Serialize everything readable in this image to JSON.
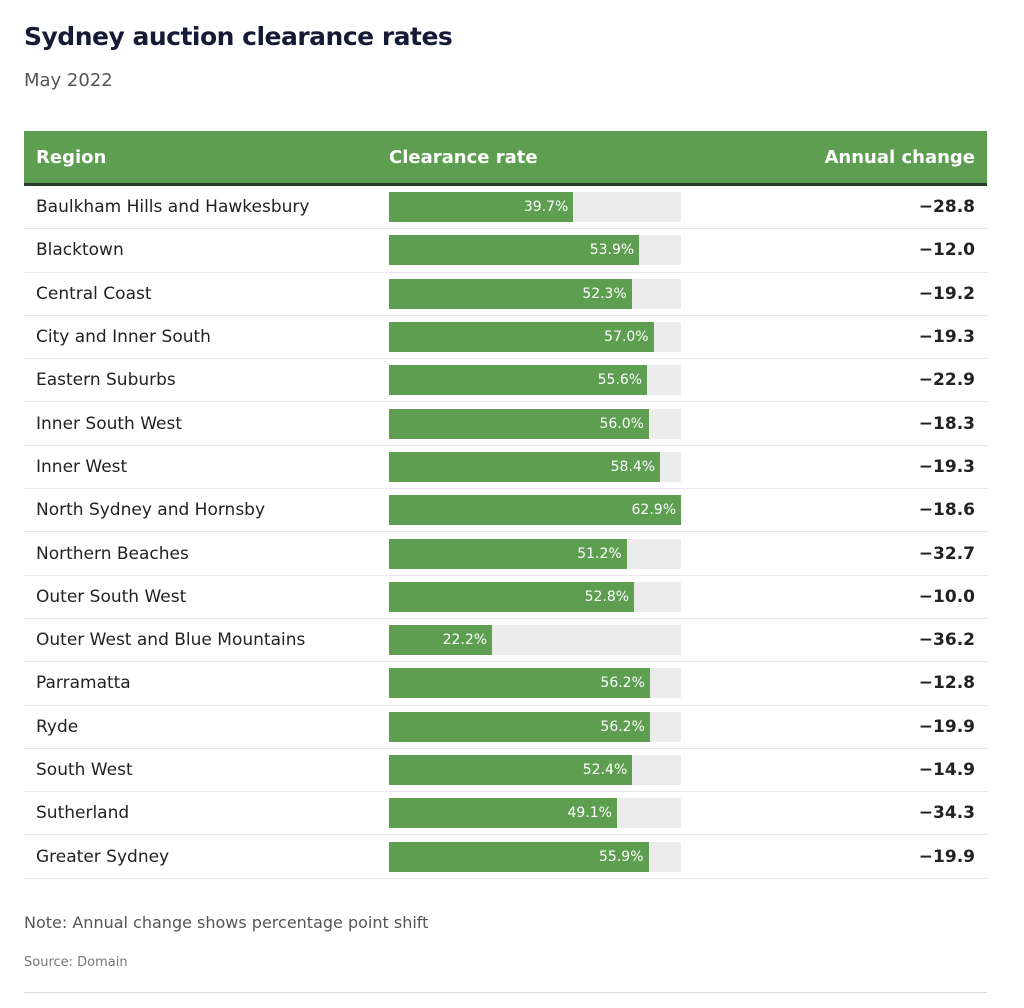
{
  "chart_data": {
    "type": "table",
    "title": "Sydney auction clearance rates",
    "subtitle": "May 2022",
    "columns": [
      "Region",
      "Clearance rate",
      "Annual change"
    ],
    "rows": [
      {
        "region": "Baulkham Hills and Hawkesbury",
        "rate": 39.7,
        "rate_label": "39.7%",
        "change": "−28.8"
      },
      {
        "region": "Blacktown",
        "rate": 53.9,
        "rate_label": "53.9%",
        "change": "−12.0"
      },
      {
        "region": "Central Coast",
        "rate": 52.3,
        "rate_label": "52.3%",
        "change": "−19.2"
      },
      {
        "region": "City and Inner South",
        "rate": 57.0,
        "rate_label": "57.0%",
        "change": "−19.3"
      },
      {
        "region": "Eastern Suburbs",
        "rate": 55.6,
        "rate_label": "55.6%",
        "change": "−22.9"
      },
      {
        "region": "Inner South West",
        "rate": 56.0,
        "rate_label": "56.0%",
        "change": "−18.3"
      },
      {
        "region": "Inner West",
        "rate": 58.4,
        "rate_label": "58.4%",
        "change": "−19.3"
      },
      {
        "region": "North Sydney and Hornsby",
        "rate": 62.9,
        "rate_label": "62.9%",
        "change": "−18.6"
      },
      {
        "region": "Northern Beaches",
        "rate": 51.2,
        "rate_label": "51.2%",
        "change": "−32.7"
      },
      {
        "region": "Outer South West",
        "rate": 52.8,
        "rate_label": "52.8%",
        "change": "−10.0"
      },
      {
        "region": "Outer West and Blue Mountains",
        "rate": 22.2,
        "rate_label": "22.2%",
        "change": "−36.2"
      },
      {
        "region": "Parramatta",
        "rate": 56.2,
        "rate_label": "56.2%",
        "change": "−12.8"
      },
      {
        "region": "Ryde",
        "rate": 56.2,
        "rate_label": "56.2%",
        "change": "−19.9"
      },
      {
        "region": "South West",
        "rate": 52.4,
        "rate_label": "52.4%",
        "change": "−14.9"
      },
      {
        "region": "Sutherland",
        "rate": 49.1,
        "rate_label": "49.1%",
        "change": "−34.3"
      },
      {
        "region": "Greater Sydney",
        "rate": 55.9,
        "rate_label": "55.9%",
        "change": "−19.9"
      }
    ],
    "bar_range": [
      0,
      62.9
    ],
    "note": "Note: Annual change shows percentage point shift",
    "source": "Source: Domain",
    "colors": {
      "bar": "#5d9e51",
      "track": "#ececec",
      "header": "#5d9e51",
      "title": "#151b36"
    }
  }
}
